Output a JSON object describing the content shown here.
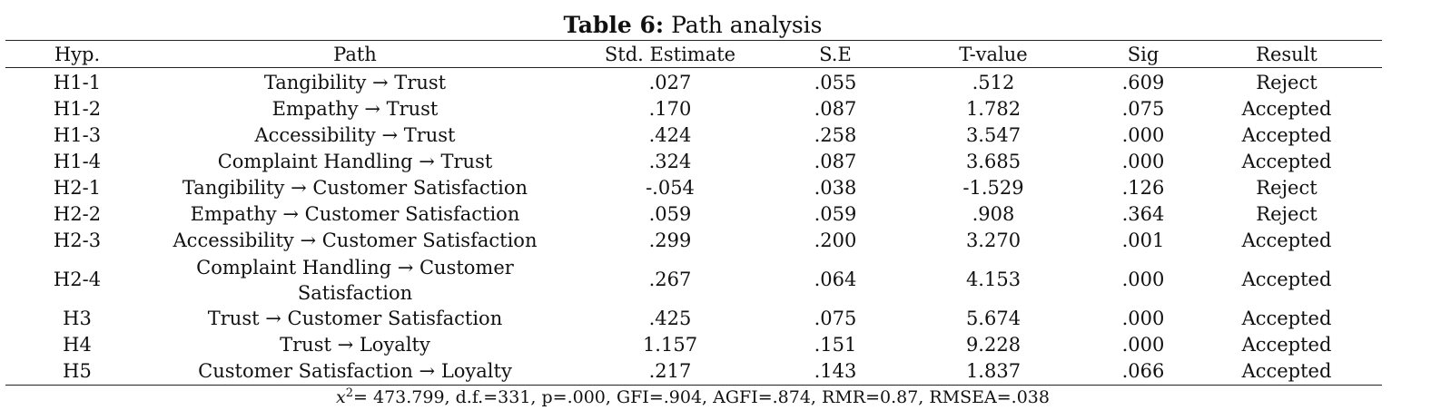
{
  "caption": {
    "label": "Table 6:",
    "title": "Path analysis"
  },
  "columns": [
    "Hyp.",
    "Path",
    "Std. Estimate",
    "S.E",
    "T-value",
    "Sig",
    "Result"
  ],
  "rows": [
    {
      "hyp": "H1-1",
      "path": "Tangibility → Trust",
      "estimate": ".027",
      "se": ".055",
      "t": ".512",
      "sig": ".609",
      "result": "Reject"
    },
    {
      "hyp": "H1-2",
      "path": "Empathy → Trust",
      "estimate": ".170",
      "se": ".087",
      "t": "1.782",
      "sig": ".075",
      "result": "Accepted"
    },
    {
      "hyp": "H1-3",
      "path": "Accessibility → Trust",
      "estimate": ".424",
      "se": ".258",
      "t": "3.547",
      "sig": ".000",
      "result": "Accepted"
    },
    {
      "hyp": "H1-4",
      "path": "Complaint Handling → Trust",
      "estimate": ".324",
      "se": ".087",
      "t": "3.685",
      "sig": ".000",
      "result": "Accepted"
    },
    {
      "hyp": "H2-1",
      "path": "Tangibility → Customer Satisfaction",
      "estimate": "-.054",
      "se": ".038",
      "t": "-1.529",
      "sig": ".126",
      "result": "Reject"
    },
    {
      "hyp": "H2-2",
      "path": "Empathy → Customer Satisfaction",
      "estimate": ".059",
      "se": ".059",
      "t": ".908",
      "sig": ".364",
      "result": "Reject"
    },
    {
      "hyp": "H2-3",
      "path": "Accessibility → Customer Satisfaction",
      "estimate": ".299",
      "se": ".200",
      "t": "3.270",
      "sig": ".001",
      "result": "Accepted"
    },
    {
      "hyp": "H2-4",
      "path": "Complaint Handling → Customer Satisfaction",
      "estimate": ".267",
      "se": ".064",
      "t": "4.153",
      "sig": ".000",
      "result": "Accepted"
    },
    {
      "hyp": "H3",
      "path": "Trust → Customer Satisfaction",
      "estimate": ".425",
      "se": ".075",
      "t": "5.674",
      "sig": ".000",
      "result": "Accepted"
    },
    {
      "hyp": "H4",
      "path": "Trust → Loyalty",
      "estimate": "1.157",
      "se": ".151",
      "t": "9.228",
      "sig": ".000",
      "result": "Accepted"
    },
    {
      "hyp": "H5",
      "path": "Customer Satisfaction → Loyalty",
      "estimate": ".217",
      "se": ".143",
      "t": "1.837",
      "sig": ".066",
      "result": "Accepted"
    }
  ],
  "note": {
    "symbol": "x",
    "power": "2",
    "text": "=  473.799, d.f.=331, p=.000, GFI=.904, AGFI=.874, RMR=0.87, RMSEA=.038"
  }
}
